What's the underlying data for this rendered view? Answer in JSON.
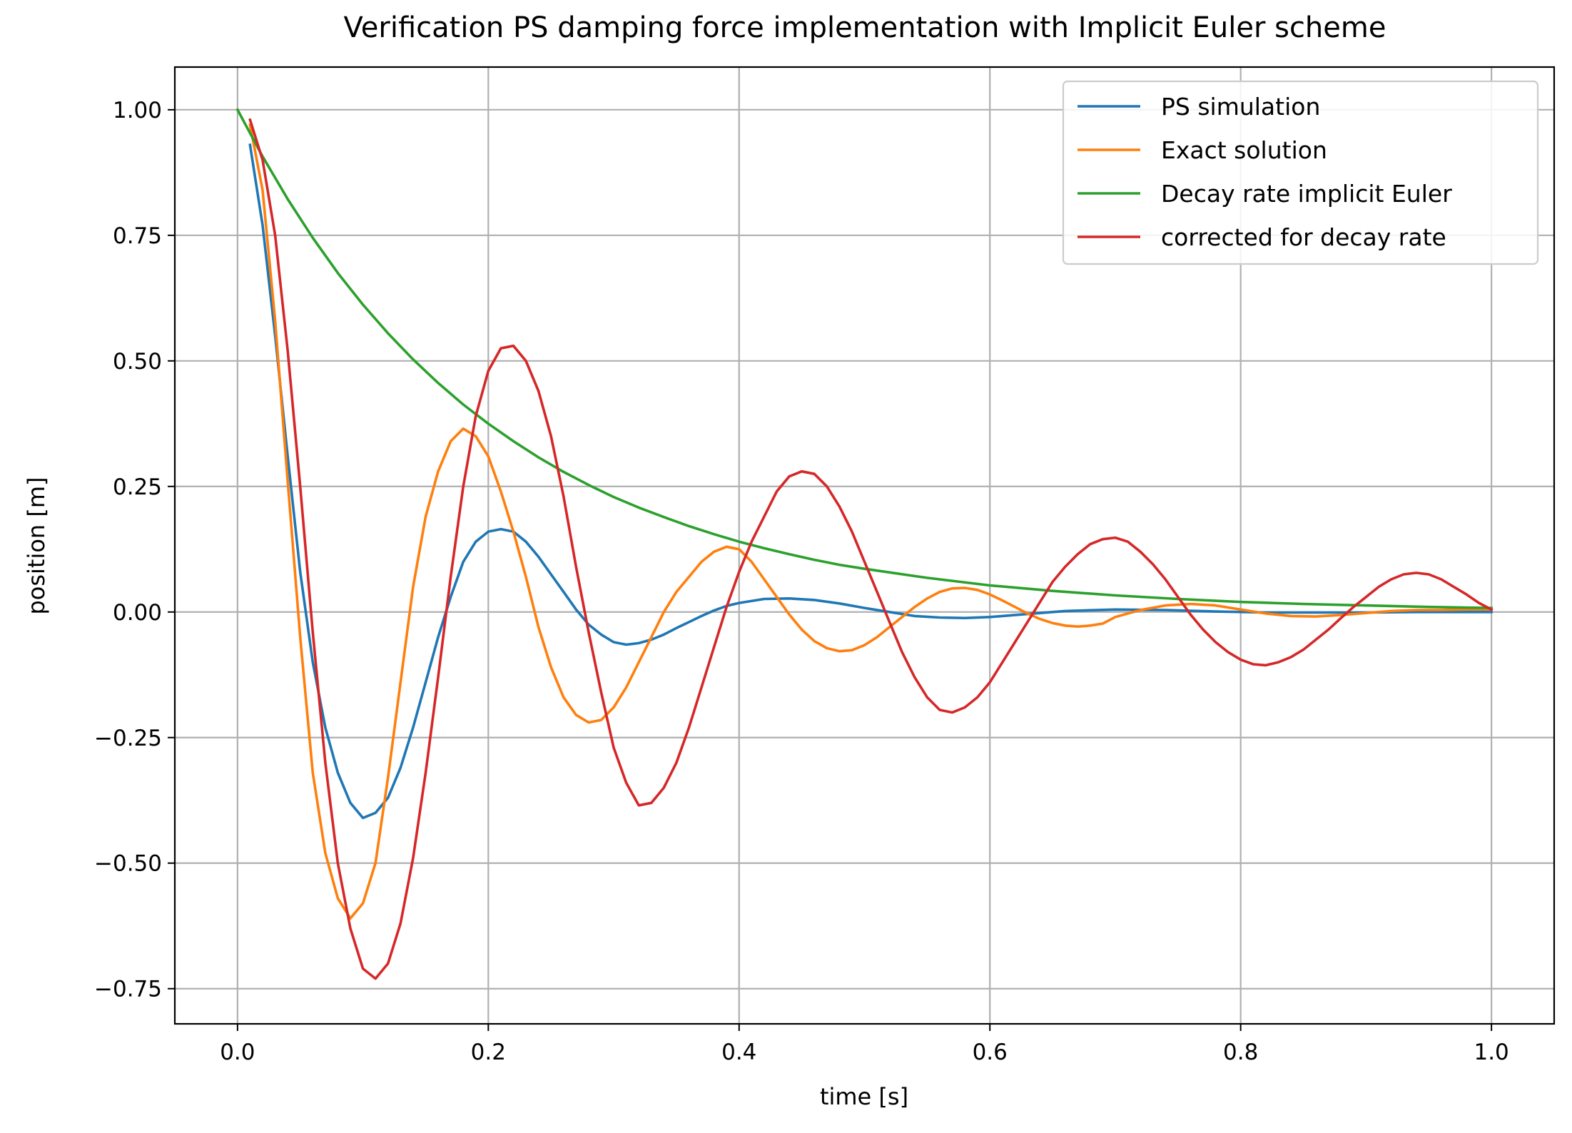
{
  "chart_data": {
    "type": "line",
    "title": "Verification PS damping force implementation with Implicit Euler scheme",
    "xlabel": "time [s]",
    "ylabel": "position [m]",
    "xlim": [
      -0.05,
      1.05
    ],
    "ylim": [
      -0.82,
      1.085
    ],
    "x_ticks": [
      0.0,
      0.2,
      0.4,
      0.6,
      0.8,
      1.0
    ],
    "x_tick_labels": [
      "0.0",
      "0.2",
      "0.4",
      "0.6",
      "0.8",
      "1.0"
    ],
    "y_ticks": [
      1.0,
      0.75,
      0.5,
      0.25,
      0.0,
      -0.25,
      -0.5,
      -0.75
    ],
    "y_tick_labels": [
      "1.00",
      "0.75",
      "0.50",
      "0.25",
      "0.00",
      "−0.25",
      "−0.50",
      "−0.75"
    ],
    "grid": true,
    "legend_position": "top-right",
    "series": [
      {
        "name": "PS simulation",
        "color": "#1f77b4",
        "x": [
          0.01,
          0.02,
          0.03,
          0.04,
          0.05,
          0.06,
          0.07,
          0.08,
          0.09,
          0.1,
          0.11,
          0.12,
          0.13,
          0.14,
          0.15,
          0.16,
          0.17,
          0.18,
          0.19,
          0.2,
          0.21,
          0.22,
          0.23,
          0.24,
          0.25,
          0.26,
          0.27,
          0.28,
          0.29,
          0.3,
          0.31,
          0.32,
          0.33,
          0.34,
          0.35,
          0.36,
          0.37,
          0.38,
          0.39,
          0.4,
          0.42,
          0.44,
          0.46,
          0.48,
          0.5,
          0.52,
          0.54,
          0.56,
          0.58,
          0.6,
          0.63,
          0.66,
          0.7,
          0.74,
          0.78,
          0.82,
          0.86,
          0.9,
          0.94,
          0.98,
          1.0
        ],
        "values": [
          0.93,
          0.77,
          0.55,
          0.31,
          0.08,
          -0.1,
          -0.23,
          -0.32,
          -0.38,
          -0.41,
          -0.4,
          -0.37,
          -0.31,
          -0.23,
          -0.14,
          -0.05,
          0.03,
          0.1,
          0.14,
          0.16,
          0.165,
          0.16,
          0.14,
          0.11,
          0.075,
          0.04,
          0.005,
          -0.025,
          -0.045,
          -0.06,
          -0.065,
          -0.062,
          -0.055,
          -0.045,
          -0.032,
          -0.02,
          -0.008,
          0.003,
          0.012,
          0.018,
          0.026,
          0.027,
          0.024,
          0.017,
          0.008,
          0.0,
          -0.008,
          -0.011,
          -0.012,
          -0.01,
          -0.004,
          0.002,
          0.005,
          0.004,
          0.001,
          -0.001,
          -0.001,
          -0.001,
          0.0,
          0.0,
          0.0
        ]
      },
      {
        "name": "Exact solution",
        "color": "#ff7f0e",
        "x": [
          0.01,
          0.02,
          0.03,
          0.04,
          0.05,
          0.06,
          0.07,
          0.08,
          0.09,
          0.1,
          0.11,
          0.12,
          0.13,
          0.14,
          0.15,
          0.16,
          0.17,
          0.18,
          0.19,
          0.2,
          0.21,
          0.22,
          0.23,
          0.24,
          0.25,
          0.26,
          0.27,
          0.28,
          0.29,
          0.3,
          0.31,
          0.32,
          0.33,
          0.34,
          0.35,
          0.36,
          0.37,
          0.38,
          0.39,
          0.4,
          0.41,
          0.42,
          0.43,
          0.44,
          0.45,
          0.46,
          0.47,
          0.48,
          0.49,
          0.5,
          0.51,
          0.52,
          0.53,
          0.54,
          0.55,
          0.56,
          0.57,
          0.58,
          0.59,
          0.6,
          0.61,
          0.62,
          0.63,
          0.64,
          0.65,
          0.66,
          0.67,
          0.68,
          0.69,
          0.7,
          0.72,
          0.74,
          0.76,
          0.78,
          0.8,
          0.82,
          0.84,
          0.86,
          0.88,
          0.9,
          0.92,
          0.94,
          0.96,
          0.98,
          1.0
        ],
        "values": [
          0.97,
          0.84,
          0.58,
          0.26,
          -0.05,
          -0.32,
          -0.48,
          -0.57,
          -0.61,
          -0.58,
          -0.5,
          -0.33,
          -0.14,
          0.05,
          0.19,
          0.28,
          0.34,
          0.365,
          0.35,
          0.31,
          0.24,
          0.16,
          0.07,
          -0.03,
          -0.11,
          -0.17,
          -0.205,
          -0.22,
          -0.215,
          -0.19,
          -0.15,
          -0.1,
          -0.05,
          0.0,
          0.04,
          0.07,
          0.1,
          0.12,
          0.13,
          0.125,
          0.1,
          0.065,
          0.03,
          -0.005,
          -0.035,
          -0.058,
          -0.072,
          -0.078,
          -0.076,
          -0.066,
          -0.05,
          -0.03,
          -0.01,
          0.01,
          0.027,
          0.04,
          0.047,
          0.048,
          0.044,
          0.035,
          0.023,
          0.01,
          -0.003,
          -0.014,
          -0.022,
          -0.027,
          -0.029,
          -0.027,
          -0.023,
          -0.01,
          0.004,
          0.013,
          0.016,
          0.013,
          0.005,
          -0.003,
          -0.008,
          -0.009,
          -0.006,
          -0.002,
          0.002,
          0.004,
          0.004,
          0.005,
          0.005
        ]
      },
      {
        "name": "Decay rate implicit Euler",
        "color": "#2ca02c",
        "x": [
          0.0,
          0.02,
          0.04,
          0.06,
          0.08,
          0.1,
          0.12,
          0.14,
          0.16,
          0.18,
          0.2,
          0.22,
          0.24,
          0.26,
          0.28,
          0.3,
          0.32,
          0.34,
          0.36,
          0.38,
          0.4,
          0.42,
          0.44,
          0.46,
          0.48,
          0.5,
          0.55,
          0.6,
          0.65,
          0.7,
          0.75,
          0.8,
          0.85,
          0.9,
          0.95,
          1.0
        ],
        "values": [
          1.0,
          0.907,
          0.822,
          0.745,
          0.675,
          0.612,
          0.555,
          0.503,
          0.456,
          0.413,
          0.375,
          0.34,
          0.308,
          0.279,
          0.253,
          0.229,
          0.208,
          0.189,
          0.171,
          0.155,
          0.14,
          0.127,
          0.115,
          0.104,
          0.094,
          0.086,
          0.068,
          0.053,
          0.042,
          0.033,
          0.026,
          0.02,
          0.016,
          0.013,
          0.01,
          0.008
        ]
      },
      {
        "name": "corrected for decay rate",
        "color": "#d62728",
        "x": [
          0.01,
          0.02,
          0.03,
          0.04,
          0.05,
          0.06,
          0.07,
          0.08,
          0.09,
          0.1,
          0.11,
          0.12,
          0.13,
          0.14,
          0.15,
          0.16,
          0.17,
          0.18,
          0.19,
          0.2,
          0.21,
          0.22,
          0.23,
          0.24,
          0.25,
          0.26,
          0.27,
          0.28,
          0.29,
          0.3,
          0.31,
          0.32,
          0.33,
          0.34,
          0.35,
          0.36,
          0.37,
          0.38,
          0.39,
          0.4,
          0.41,
          0.42,
          0.43,
          0.44,
          0.45,
          0.46,
          0.47,
          0.48,
          0.49,
          0.5,
          0.51,
          0.52,
          0.53,
          0.54,
          0.55,
          0.56,
          0.57,
          0.58,
          0.59,
          0.6,
          0.61,
          0.62,
          0.63,
          0.64,
          0.65,
          0.66,
          0.67,
          0.68,
          0.69,
          0.7,
          0.71,
          0.72,
          0.73,
          0.74,
          0.75,
          0.76,
          0.77,
          0.78,
          0.79,
          0.8,
          0.81,
          0.82,
          0.83,
          0.84,
          0.85,
          0.86,
          0.87,
          0.88,
          0.89,
          0.9,
          0.91,
          0.92,
          0.93,
          0.94,
          0.95,
          0.96,
          0.97,
          0.98,
          0.99,
          1.0
        ],
        "values": [
          0.98,
          0.9,
          0.75,
          0.52,
          0.25,
          -0.04,
          -0.3,
          -0.5,
          -0.63,
          -0.71,
          -0.73,
          -0.7,
          -0.62,
          -0.49,
          -0.32,
          -0.13,
          0.07,
          0.25,
          0.39,
          0.48,
          0.525,
          0.53,
          0.5,
          0.44,
          0.35,
          0.23,
          0.09,
          -0.04,
          -0.16,
          -0.27,
          -0.34,
          -0.385,
          -0.38,
          -0.35,
          -0.3,
          -0.23,
          -0.15,
          -0.07,
          0.01,
          0.08,
          0.14,
          0.19,
          0.24,
          0.27,
          0.28,
          0.275,
          0.25,
          0.21,
          0.16,
          0.1,
          0.04,
          -0.02,
          -0.08,
          -0.13,
          -0.17,
          -0.195,
          -0.2,
          -0.19,
          -0.17,
          -0.14,
          -0.1,
          -0.06,
          -0.02,
          0.02,
          0.06,
          0.09,
          0.115,
          0.135,
          0.145,
          0.148,
          0.14,
          0.12,
          0.095,
          0.065,
          0.03,
          -0.005,
          -0.035,
          -0.06,
          -0.08,
          -0.095,
          -0.104,
          -0.106,
          -0.1,
          -0.09,
          -0.075,
          -0.055,
          -0.035,
          -0.012,
          0.01,
          0.03,
          0.05,
          0.065,
          0.075,
          0.078,
          0.075,
          0.065,
          0.05,
          0.035,
          0.018,
          0.005
        ]
      }
    ]
  }
}
